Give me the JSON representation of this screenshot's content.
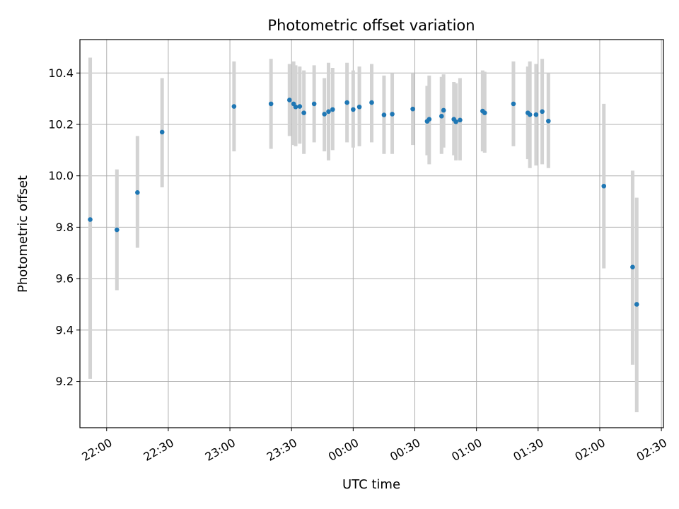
{
  "chart_data": {
    "type": "scatter",
    "title": "Photometric offset variation",
    "xlabel": "UTC time",
    "ylabel": "Photometric offset",
    "x_ticks": [
      "22:00",
      "22:30",
      "23:00",
      "23:30",
      "00:00",
      "00:30",
      "01:00",
      "01:30",
      "02:00",
      "02:30"
    ],
    "y_ticks": [
      "9.2",
      "9.4",
      "9.6",
      "9.8",
      "10.0",
      "10.2",
      "10.4"
    ],
    "xlim": [
      "21:47",
      "02:31"
    ],
    "ylim": [
      9.02,
      10.53
    ],
    "grid": true,
    "point_color": "#1f77b4",
    "errorbar_color": "#d3d3d3",
    "series": [
      {
        "points": [
          {
            "t": "21:52",
            "y": 9.83,
            "lo": 9.21,
            "hi": 10.46
          },
          {
            "t": "22:05",
            "y": 9.79,
            "lo": 9.555,
            "hi": 10.025
          },
          {
            "t": "22:15",
            "y": 9.935,
            "lo": 9.72,
            "hi": 10.155
          },
          {
            "t": "22:27",
            "y": 10.17,
            "lo": 9.955,
            "hi": 10.38
          },
          {
            "t": "23:02",
            "y": 10.27,
            "lo": 10.095,
            "hi": 10.445
          },
          {
            "t": "23:20",
            "y": 10.28,
            "lo": 10.105,
            "hi": 10.455
          },
          {
            "t": "23:29",
            "y": 10.295,
            "lo": 10.155,
            "hi": 10.435
          },
          {
            "t": "23:31",
            "y": 10.28,
            "lo": 10.12,
            "hi": 10.445
          },
          {
            "t": "23:32",
            "y": 10.268,
            "lo": 10.115,
            "hi": 10.43
          },
          {
            "t": "23:34",
            "y": 10.27,
            "lo": 10.125,
            "hi": 10.425
          },
          {
            "t": "23:36",
            "y": 10.245,
            "lo": 10.085,
            "hi": 10.41
          },
          {
            "t": "23:41",
            "y": 10.28,
            "lo": 10.13,
            "hi": 10.43
          },
          {
            "t": "23:46",
            "y": 10.24,
            "lo": 10.095,
            "hi": 10.38
          },
          {
            "t": "23:48",
            "y": 10.25,
            "lo": 10.06,
            "hi": 10.44
          },
          {
            "t": "23:50",
            "y": 10.258,
            "lo": 10.1,
            "hi": 10.42
          },
          {
            "t": "23:57",
            "y": 10.285,
            "lo": 10.13,
            "hi": 10.44
          },
          {
            "t": "00:00",
            "y": 10.258,
            "lo": 10.11,
            "hi": 10.41
          },
          {
            "t": "00:03",
            "y": 10.268,
            "lo": 10.115,
            "hi": 10.425
          },
          {
            "t": "00:09",
            "y": 10.285,
            "lo": 10.13,
            "hi": 10.435
          },
          {
            "t": "00:15",
            "y": 10.237,
            "lo": 10.085,
            "hi": 10.39
          },
          {
            "t": "00:19",
            "y": 10.24,
            "lo": 10.085,
            "hi": 10.4
          },
          {
            "t": "00:29",
            "y": 10.26,
            "lo": 10.12,
            "hi": 10.4
          },
          {
            "t": "00:36",
            "y": 10.212,
            "lo": 10.08,
            "hi": 10.35
          },
          {
            "t": "00:37",
            "y": 10.22,
            "lo": 10.045,
            "hi": 10.39
          },
          {
            "t": "00:43",
            "y": 10.232,
            "lo": 10.085,
            "hi": 10.385
          },
          {
            "t": "00:44",
            "y": 10.255,
            "lo": 10.11,
            "hi": 10.395
          },
          {
            "t": "00:49",
            "y": 10.22,
            "lo": 10.08,
            "hi": 10.365
          },
          {
            "t": "00:50",
            "y": 10.21,
            "lo": 10.06,
            "hi": 10.36
          },
          {
            "t": "00:52",
            "y": 10.217,
            "lo": 10.06,
            "hi": 10.38
          },
          {
            "t": "01:03",
            "y": 10.252,
            "lo": 10.095,
            "hi": 10.41
          },
          {
            "t": "01:04",
            "y": 10.245,
            "lo": 10.09,
            "hi": 10.405
          },
          {
            "t": "01:18",
            "y": 10.28,
            "lo": 10.115,
            "hi": 10.445
          },
          {
            "t": "01:25",
            "y": 10.245,
            "lo": 10.065,
            "hi": 10.425
          },
          {
            "t": "01:26",
            "y": 10.238,
            "lo": 10.03,
            "hi": 10.445
          },
          {
            "t": "01:29",
            "y": 10.238,
            "lo": 10.04,
            "hi": 10.435
          },
          {
            "t": "01:32",
            "y": 10.25,
            "lo": 10.045,
            "hi": 10.455
          },
          {
            "t": "01:35",
            "y": 10.213,
            "lo": 10.03,
            "hi": 10.4
          },
          {
            "t": "02:02",
            "y": 9.96,
            "lo": 9.64,
            "hi": 10.28
          },
          {
            "t": "02:16",
            "y": 9.645,
            "lo": 9.265,
            "hi": 10.02
          },
          {
            "t": "02:18",
            "y": 9.5,
            "lo": 9.08,
            "hi": 9.915
          }
        ]
      }
    ]
  }
}
